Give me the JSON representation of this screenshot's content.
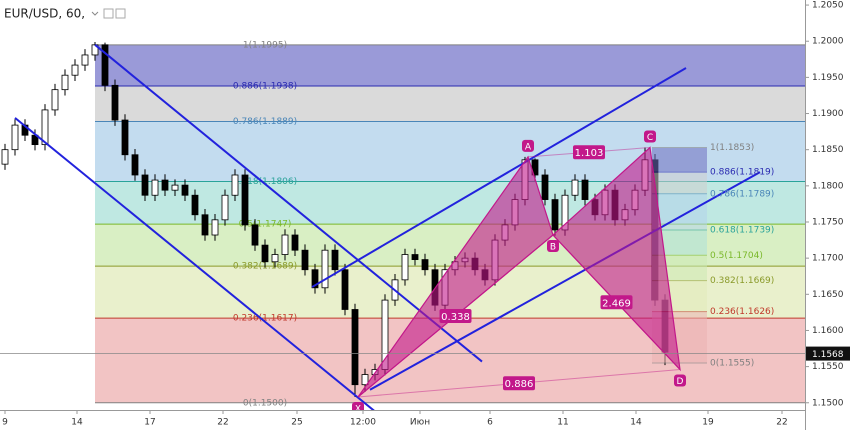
{
  "chart_data": {
    "type": "candlestick",
    "title": "EUR/USD, 60,",
    "x": [
      0,
      1,
      2,
      3,
      4,
      5,
      6,
      7,
      8,
      9,
      10,
      11,
      12,
      13,
      14,
      15,
      16,
      17,
      18,
      19,
      20,
      21,
      22,
      23,
      24,
      25,
      26,
      27,
      28,
      29,
      30,
      31,
      32,
      33,
      34,
      35,
      36,
      37,
      38,
      39,
      40,
      41,
      42,
      43,
      44,
      45,
      46,
      47,
      48,
      49,
      50,
      51,
      52,
      53,
      54,
      55,
      56,
      57,
      58,
      59,
      60,
      61,
      62,
      63,
      64,
      65,
      66
    ],
    "open": [
      1.183,
      1.185,
      1.1884,
      1.187,
      1.1857,
      1.1905,
      1.1933,
      1.1953,
      1.1967,
      1.1981,
      1.1995,
      1.1939,
      1.1891,
      1.1843,
      1.1815,
      1.1787,
      1.1808,
      1.1794,
      1.1801,
      1.1787,
      1.176,
      1.1732,
      1.1753,
      1.1787,
      1.1815,
      1.1746,
      1.1718,
      1.1695,
      1.1705,
      1.1732,
      1.1711,
      1.1684,
      1.1659,
      1.1711,
      1.1684,
      1.1629,
      1.1525,
      1.1539,
      1.1546,
      1.1642,
      1.167,
      1.1705,
      1.1698,
      1.1684,
      1.1635,
      1.1684,
      1.1695,
      1.17,
      1.1684,
      1.167,
      1.1725,
      1.1746,
      1.1781,
      1.1836,
      1.1815,
      1.1781,
      1.1739,
      1.1787,
      1.1808,
      1.1781,
      1.176,
      1.1794,
      1.1753,
      1.1767,
      1.1794,
      1.1836,
      1.1642
    ],
    "high": [
      1.1858,
      1.1892,
      1.1892,
      1.1878,
      1.1913,
      1.1941,
      1.1961,
      1.1975,
      1.1989,
      1.1999,
      1.1998,
      1.1947,
      1.1899,
      1.1851,
      1.1823,
      1.1816,
      1.1816,
      1.1809,
      1.1809,
      1.1795,
      1.1768,
      1.1761,
      1.1795,
      1.1823,
      1.1823,
      1.1754,
      1.1726,
      1.1713,
      1.174,
      1.174,
      1.1719,
      1.1692,
      1.1719,
      1.1719,
      1.1692,
      1.1637,
      1.1547,
      1.1554,
      1.165,
      1.1678,
      1.1713,
      1.1713,
      1.1706,
      1.1692,
      1.1692,
      1.1703,
      1.1708,
      1.1708,
      1.1692,
      1.1733,
      1.1754,
      1.1789,
      1.184,
      1.1838,
      1.1823,
      1.1789,
      1.1795,
      1.1816,
      1.1816,
      1.1789,
      1.1802,
      1.1802,
      1.1775,
      1.1802,
      1.1853,
      1.1844,
      1.165
    ],
    "low": [
      1.1822,
      1.1842,
      1.1862,
      1.1849,
      1.1849,
      1.1897,
      1.1925,
      1.1945,
      1.1959,
      1.1973,
      1.1931,
      1.1883,
      1.1835,
      1.1807,
      1.1779,
      1.1779,
      1.1786,
      1.1786,
      1.1779,
      1.1752,
      1.1724,
      1.1724,
      1.1745,
      1.1779,
      1.1738,
      1.171,
      1.1687,
      1.1687,
      1.1697,
      1.1703,
      1.1676,
      1.1651,
      1.1651,
      1.1676,
      1.1621,
      1.1508,
      1.1515,
      1.1531,
      1.1538,
      1.1634,
      1.1662,
      1.169,
      1.1676,
      1.1627,
      1.1627,
      1.1676,
      1.1687,
      1.1676,
      1.1662,
      1.1662,
      1.1717,
      1.1738,
      1.1773,
      1.1807,
      1.1773,
      1.1731,
      1.1731,
      1.1779,
      1.1773,
      1.1752,
      1.1752,
      1.1745,
      1.1745,
      1.1759,
      1.1786,
      1.1634,
      1.1552
    ],
    "close": [
      1.185,
      1.1884,
      1.187,
      1.1857,
      1.1905,
      1.1933,
      1.1953,
      1.1967,
      1.1981,
      1.1995,
      1.1939,
      1.1891,
      1.1843,
      1.1815,
      1.1787,
      1.1808,
      1.1794,
      1.1801,
      1.1787,
      1.176,
      1.1732,
      1.1753,
      1.1787,
      1.1815,
      1.1746,
      1.1718,
      1.1695,
      1.1705,
      1.1732,
      1.1711,
      1.1684,
      1.1659,
      1.1711,
      1.1684,
      1.1629,
      1.1525,
      1.1539,
      1.1546,
      1.1642,
      1.167,
      1.1705,
      1.1698,
      1.1684,
      1.1635,
      1.1684,
      1.1695,
      1.17,
      1.1684,
      1.167,
      1.1725,
      1.1746,
      1.1781,
      1.1836,
      1.1815,
      1.1781,
      1.1739,
      1.1787,
      1.1808,
      1.1781,
      1.176,
      1.1794,
      1.1753,
      1.1767,
      1.1794,
      1.1836,
      1.1642,
      1.157
    ],
    "up_color": "#ffffff",
    "down_color": "#000000",
    "wick_color": "#000000",
    "xlim": [
      -0.5,
      80
    ],
    "xticks": [
      {
        "value": 0,
        "label": "9"
      },
      {
        "value": 7.2,
        "label": "14"
      },
      {
        "value": 14.5,
        "label": "17"
      },
      {
        "value": 21.8,
        "label": "22"
      },
      {
        "value": 29.2,
        "label": "25"
      },
      {
        "value": 35.8,
        "label": "12:00"
      },
      {
        "value": 41.5,
        "label": "Июн"
      },
      {
        "value": 48.5,
        "label": "6"
      },
      {
        "value": 55.8,
        "label": "11"
      },
      {
        "value": 63.1,
        "label": "14"
      },
      {
        "value": 70.3,
        "label": "19"
      },
      {
        "value": 77.7,
        "label": "22"
      }
    ],
    "ylim": [
      1.149,
      1.2057
    ],
    "yticks": [
      {
        "value": 1.15,
        "label": "1.1500"
      },
      {
        "value": 1.155,
        "label": "1.1550"
      },
      {
        "value": 1.16,
        "label": "1.1600"
      },
      {
        "value": 1.165,
        "label": "1.1650"
      },
      {
        "value": 1.17,
        "label": "1.1700"
      },
      {
        "value": 1.175,
        "label": "1.1750"
      },
      {
        "value": 1.18,
        "label": "1.1800"
      },
      {
        "value": 1.185,
        "label": "1.1850"
      },
      {
        "value": 1.19,
        "label": "1.1900"
      },
      {
        "value": 1.195,
        "label": "1.1950"
      },
      {
        "value": 1.2,
        "label": "1.2000"
      },
      {
        "value": 1.205,
        "label": "1.2050"
      }
    ],
    "grid": false,
    "last_price": 1.1568,
    "fib_retracements": [
      {
        "x_start": 9,
        "x_end": 80,
        "opacity": 1,
        "levels": [
          {
            "value": 1.1995,
            "label": "1(1.1995)",
            "color": "#808080",
            "fill": "#9a9ad8"
          },
          {
            "value": 1.1938,
            "label": "0.886(1.1938)",
            "color": "#2a2ab0",
            "fill": "#dadada"
          },
          {
            "value": 1.1889,
            "label": "0.786(1.1889)",
            "color": "#4a86b8",
            "fill": "#c3dcef"
          },
          {
            "value": 1.1806,
            "label": "0.618(1.1806)",
            "color": "#2aa39a",
            "fill": "#bfe8e2"
          },
          {
            "value": 1.1747,
            "label": "0.5(1.1747)",
            "color": "#7ab82a",
            "fill": "#d9efc4"
          },
          {
            "value": 1.1689,
            "label": "0.382(1.1689)",
            "color": "#8a9a2a",
            "fill": "#e9f0cc"
          },
          {
            "value": 1.1617,
            "label": "0.236(1.1617)",
            "color": "#c0392b",
            "fill": "#f2c4c4"
          },
          {
            "value": 1.15,
            "label": "0(1.1500)",
            "color": "#808080"
          }
        ]
      },
      {
        "x_start": 64.7,
        "x_end": 70.2,
        "opacity": 0.55,
        "levels": [
          {
            "value": 1.1853,
            "label": "1(1.1853)",
            "color": "#808080",
            "fill": "#6e6ec0"
          },
          {
            "value": 1.1819,
            "label": "0.886(1.1819)",
            "color": "#2a2ab0",
            "fill": "#cfcfcf"
          },
          {
            "value": 1.1789,
            "label": "0.786(1.1789)",
            "color": "#4a86b8",
            "fill": "#b3d4ec"
          },
          {
            "value": 1.1739,
            "label": "0.618(1.1739)",
            "color": "#2aa39a",
            "fill": "#afe2da"
          },
          {
            "value": 1.1704,
            "label": "0.5(1.1704)",
            "color": "#7ab82a",
            "fill": "#cdeab4"
          },
          {
            "value": 1.1669,
            "label": "0.382(1.1669)",
            "color": "#8a9a2a",
            "fill": "#e2ebbb"
          },
          {
            "value": 1.1626,
            "label": "0.236(1.1626)",
            "color": "#c0392b",
            "fill": "#ecb3b3"
          },
          {
            "value": 1.1555,
            "label": "0(1.1555)",
            "color": "#808080"
          }
        ]
      }
    ],
    "trend_color": "#2222dd",
    "trend_lines": [
      {
        "x": [
          1.0,
          37.0
        ],
        "y": [
          1.1894,
          1.1488
        ]
      },
      {
        "x": [
          9.0,
          47.7
        ],
        "y": [
          1.1995,
          1.1557
        ]
      },
      {
        "x": [
          30.7,
          68.1
        ],
        "y": [
          1.166,
          1.1963
        ]
      },
      {
        "x": [
          36.5,
          75.5
        ],
        "y": [
          1.1518,
          1.1819
        ]
      }
    ],
    "pattern": {
      "color": "#c2188a",
      "points": [
        {
          "label": "X",
          "x": 35.3,
          "y": 1.1508
        },
        {
          "label": "A",
          "x": 52.3,
          "y": 1.184
        },
        {
          "label": "B",
          "x": 54.8,
          "y": 1.1732
        },
        {
          "label": "C",
          "x": 64.5,
          "y": 1.1853
        },
        {
          "label": "D",
          "x": 67.5,
          "y": 1.1546
        }
      ],
      "ratios": [
        0.338,
        1.103,
        2.469,
        0.886
      ]
    }
  }
}
